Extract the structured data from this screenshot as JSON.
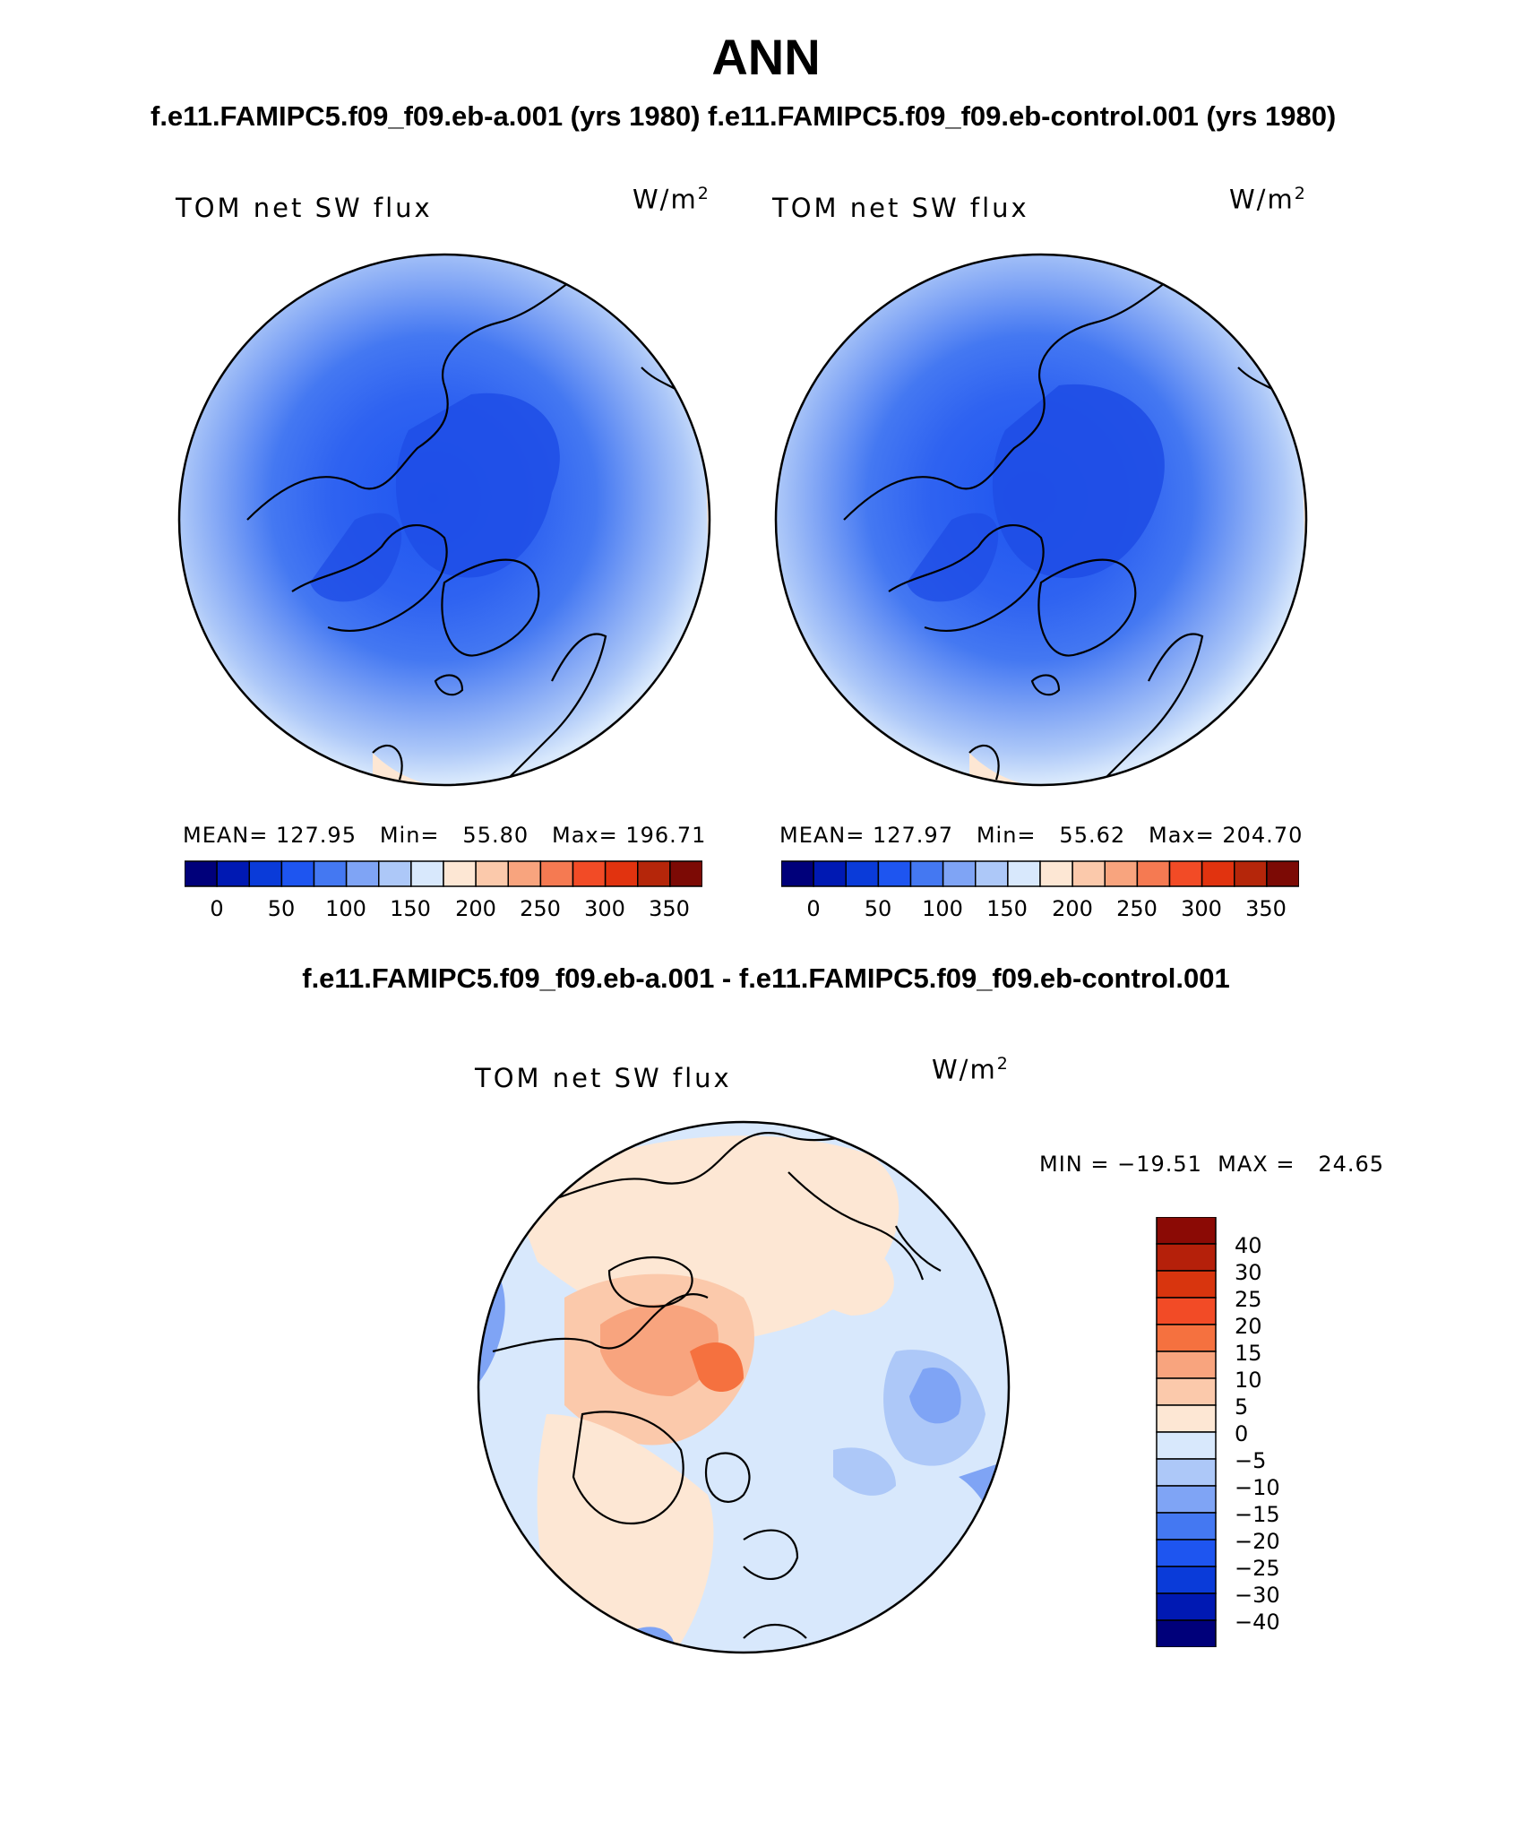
{
  "title": "ANN",
  "panels": [
    {
      "case_title": "f.e11.FAMIPC5.f09_f09.eb-a.001 (yrs 1980)",
      "variable": "TOM net SW flux",
      "units": "W/m",
      "units_exp": "2",
      "stats": "MEAN= 127.95   Min=   55.80   Max= 196.71"
    },
    {
      "case_title": "f.e11.FAMIPC5.f09_f09.eb-control.001 (yrs 1980)",
      "variable": "TOM net SW flux",
      "units": "W/m",
      "units_exp": "2",
      "stats": "MEAN= 127.97   Min=   55.62   Max= 204.70"
    }
  ],
  "colorbar": {
    "ticks": [
      "0",
      "50",
      "100",
      "150",
      "200",
      "250",
      "300",
      "350"
    ],
    "colors": [
      "#00007a",
      "#0019b3",
      "#0a3bd9",
      "#1e55f0",
      "#4478f2",
      "#7fa4f5",
      "#adc8f8",
      "#d8e8fc",
      "#fde7d4",
      "#fbc9ab",
      "#f8a47e",
      "#f57a52",
      "#f24b26",
      "#e1330f",
      "#b5260a",
      "#7c0a05"
    ]
  },
  "difference": {
    "title": "f.e11.FAMIPC5.f09_f09.eb-a.001 - f.e11.FAMIPC5.f09_f09.eb-control.001",
    "variable": "TOM net SW flux",
    "units": "W/m",
    "units_exp": "2",
    "minmax": "MIN = −19.51  MAX =   24.65",
    "colorbar_ticks": [
      "40",
      "30",
      "25",
      "20",
      "15",
      "10",
      "5",
      "0",
      "−5",
      "−10",
      "−15",
      "−20",
      "−25",
      "−30",
      "−40"
    ],
    "colorbar_colors": [
      "#8b0a05",
      "#b5200a",
      "#d8350e",
      "#f24b26",
      "#f5713f",
      "#f8a47e",
      "#fbc9ab",
      "#fde7d4",
      "#d8e8fc",
      "#adc8f8",
      "#7fa4f5",
      "#4478f2",
      "#1e55f0",
      "#0a3bd9",
      "#0019b3",
      "#00007a"
    ]
  }
}
